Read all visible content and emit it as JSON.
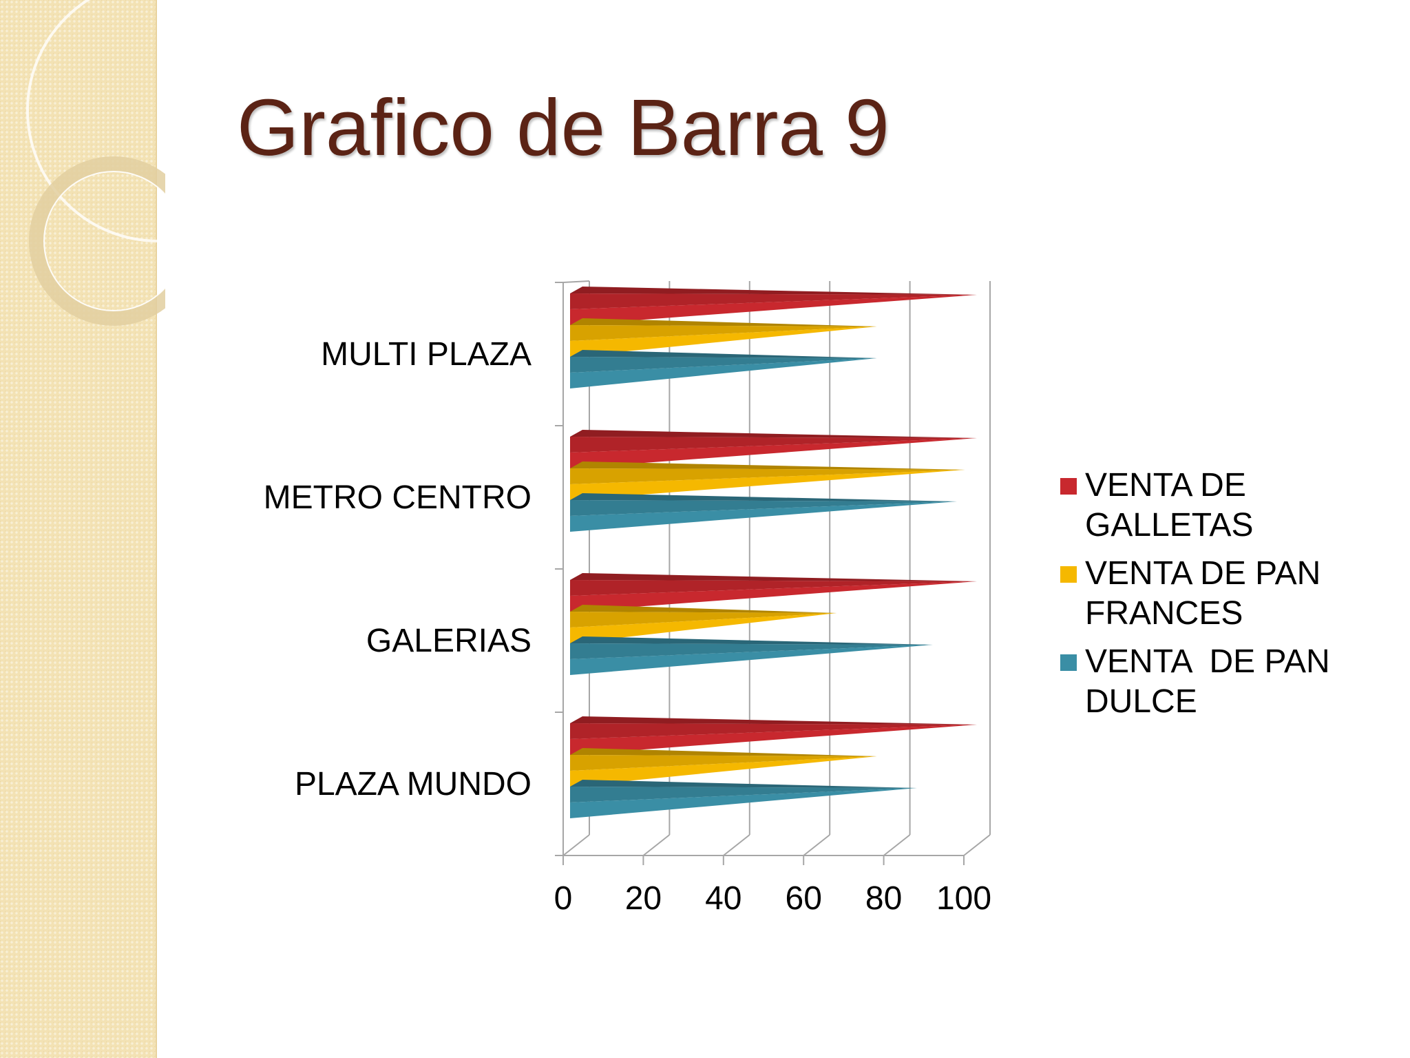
{
  "slide": {
    "title": "Grafico de Barra 9"
  },
  "colors": {
    "title": "#5b2315",
    "galletas": "#c8282e",
    "pan_frances": "#f5b800",
    "pan_dulce": "#3a8ea5",
    "axis": "#a6a6a6"
  },
  "chart_data": {
    "type": "bar",
    "orientation": "horizontal",
    "style": "3d-cone",
    "title": "",
    "xlabel": "",
    "ylabel": "",
    "xlim": [
      0,
      100
    ],
    "ticks": [
      "0",
      "20",
      "40",
      "60",
      "80",
      "100"
    ],
    "categories": [
      "MULTI PLAZA",
      "METRO CENTRO",
      "GALERIAS",
      "PLAZA MUNDO"
    ],
    "series": [
      {
        "name": "VENTA DE GALLETAS",
        "values": [
          100,
          100,
          100,
          100
        ]
      },
      {
        "name": "VENTA DE PAN FRANCES",
        "values": [
          75,
          97,
          65,
          75
        ]
      },
      {
        "name": "VENTA  DE PAN DULCE",
        "values": [
          75,
          95,
          89,
          85
        ]
      }
    ],
    "grid": true,
    "legend": "right"
  }
}
